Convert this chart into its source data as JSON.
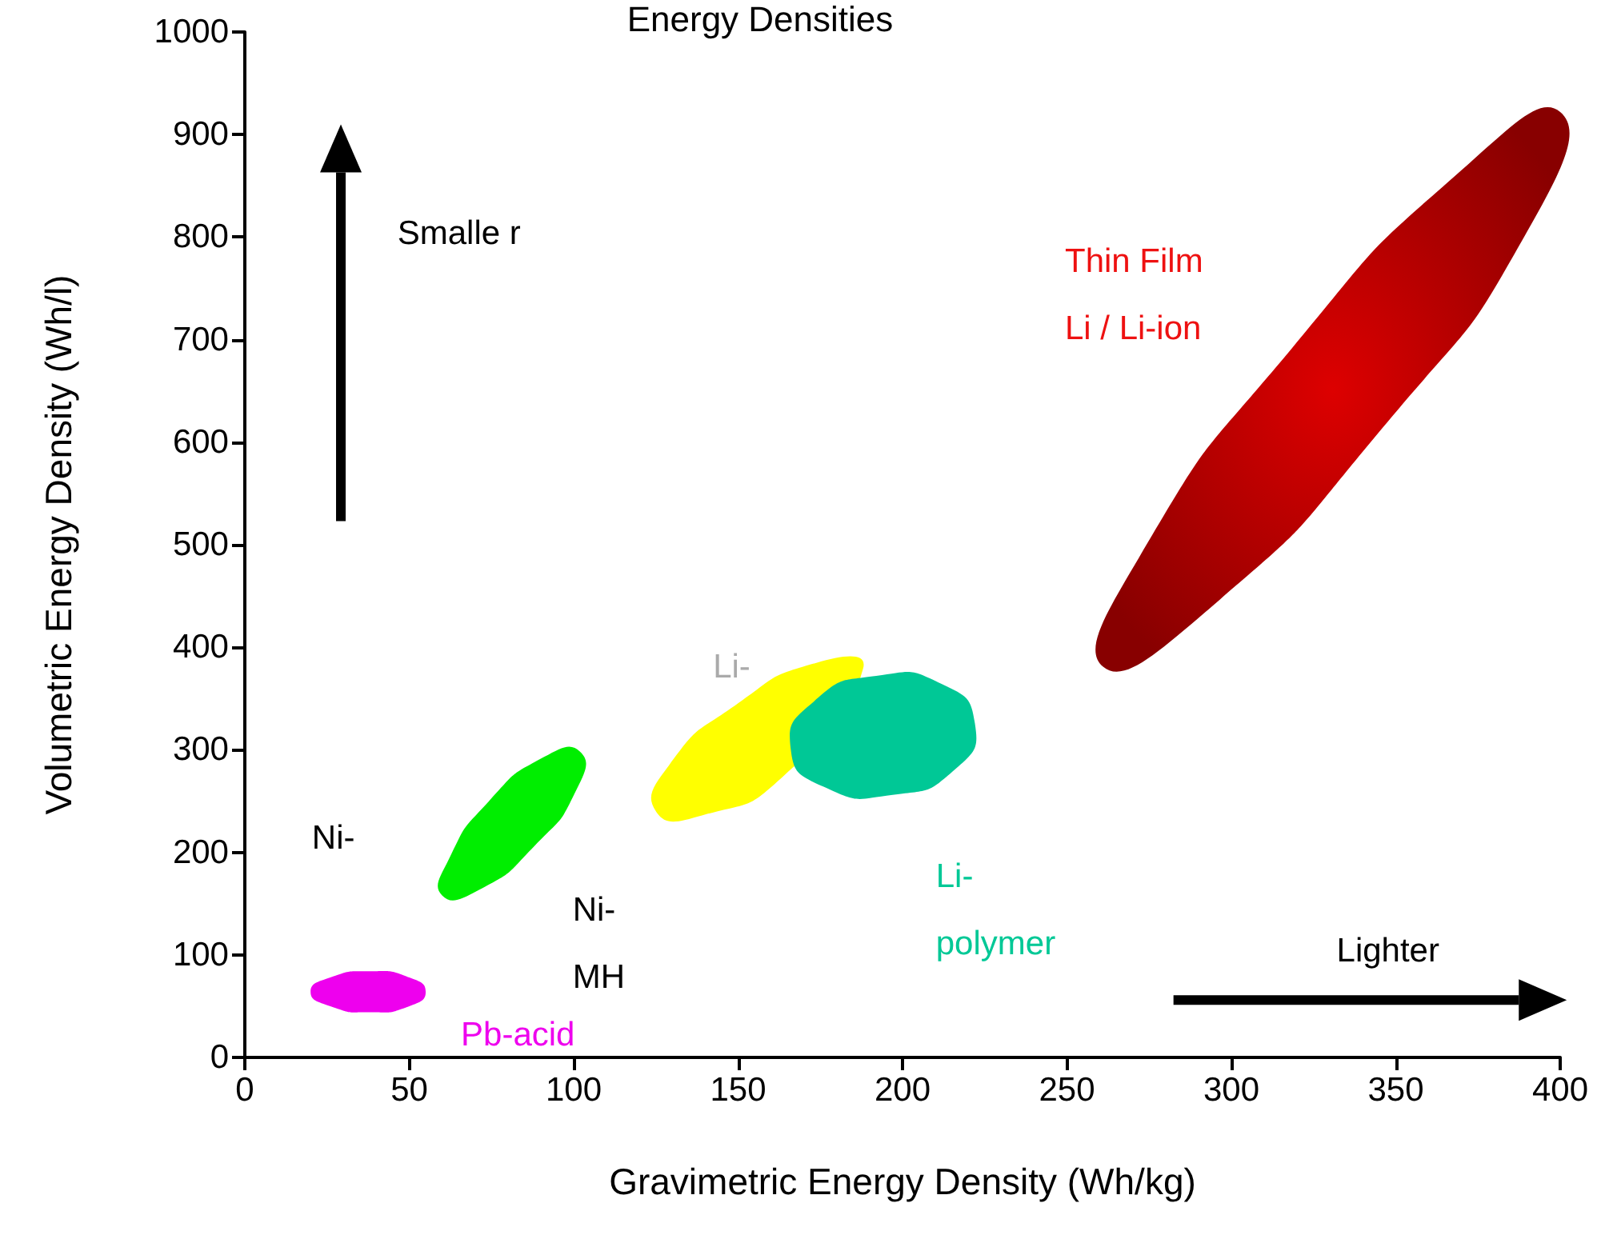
{
  "chart_data": {
    "type": "area",
    "title": "Energy Densities",
    "xlabel": "Gravimetric Energy Density (Wh/kg)",
    "ylabel": "Volumetric Energy Density (Wh/l)",
    "xlim": [
      0,
      400
    ],
    "xticks": [
      0,
      50,
      100,
      150,
      200,
      250,
      300,
      350,
      400
    ],
    "ylim": [
      0,
      1000
    ],
    "yticks": [
      0,
      100,
      200,
      300,
      400,
      500,
      600,
      700,
      800,
      900,
      1000
    ],
    "annotations": [
      "Ni-",
      "Smalle r",
      "Lighter"
    ],
    "series": [
      {
        "name": "Pb-acid",
        "color": "#ee00ee",
        "x": [
          55,
          50,
          38,
          26,
          20,
          26,
          38,
          50
        ],
        "values": [
          64,
          78,
          84,
          78,
          64,
          50,
          44,
          50
        ]
      },
      {
        "name": "Ni-\nMH",
        "color": "#00ee00",
        "x": [
          102,
          101,
          88,
          71,
          60,
          62,
          74,
          91
        ],
        "values": [
          298,
          262,
          206,
          163,
          158,
          193,
          249,
          293
        ]
      },
      {
        "name": "Li-",
        "color": "#ffff00",
        "x": [
          188,
          184,
          164,
          139,
          125,
          129,
          149,
          174
        ],
        "values": [
          379,
          null,
          275,
          236,
          240,
          285,
          343,
          385
        ]
      },
      {
        "name": "Li-\npolymer",
        "color": "#00c896",
        "x": [
          222,
          216,
          197,
          176,
          166,
          173,
          192,
          212
        ],
        "values": [
          326,
          281,
          256,
          264,
          301,
          347,
          372,
          364
        ]
      },
      {
        "name": "Thin Film\nLi / Li-ion",
        "color": "#dd0000",
        "x": [
          400,
          392,
          346,
          292,
          261,
          272,
          318,
          372
        ],
        "values": [
          922,
          817,
          614,
          434,
          381,
          488,
          690,
          871
        ]
      }
    ]
  }
}
